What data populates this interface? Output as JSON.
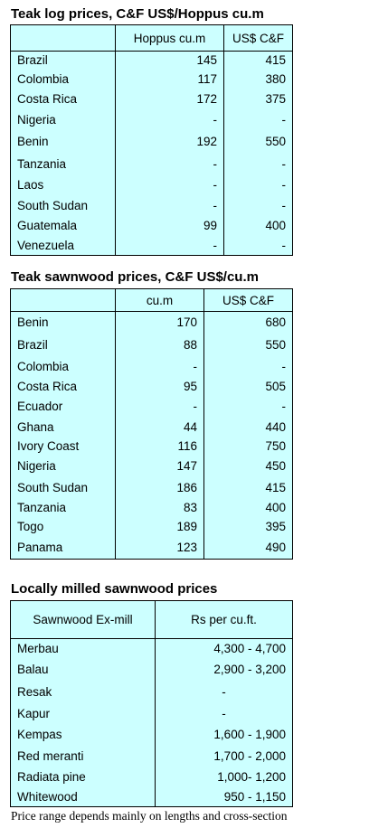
{
  "log_prices": {
    "title": "Teak log prices, C&F US$/Hoppus cu.m",
    "headers": [
      "",
      "Hoppus cu.m",
      "US$ C&F"
    ],
    "rows": [
      {
        "country": "Brazil",
        "volume": "145",
        "price": "415"
      },
      {
        "country": "Colombia",
        "volume": "117",
        "price": "380"
      },
      {
        "country": "Costa Rica",
        "volume": "172",
        "price": "375"
      },
      {
        "country": "Nigeria",
        "volume": "-",
        "price": "-"
      },
      {
        "country": "Benin",
        "volume": "192",
        "price": "550"
      },
      {
        "country": "Tanzania",
        "volume": "-",
        "price": "-"
      },
      {
        "country": "Laos",
        "volume": "-",
        "price": "-"
      },
      {
        "country": "South Sudan",
        "volume": "-",
        "price": "-"
      },
      {
        "country": "Guatemala",
        "volume": "99",
        "price": "400"
      },
      {
        "country": "Venezuela",
        "volume": "-",
        "price": "-"
      }
    ]
  },
  "sawnwood_prices": {
    "title": "Teak sawnwood prices, C&F US$/cu.m",
    "headers": [
      "",
      "cu.m",
      "US$ C&F"
    ],
    "rows": [
      {
        "country": "Benin",
        "volume": "170",
        "price": "680"
      },
      {
        "country": "Brazil",
        "volume": "88",
        "price": "550"
      },
      {
        "country": "Colombia",
        "volume": "-",
        "price": "-"
      },
      {
        "country": "Costa Rica",
        "volume": "95",
        "price": "505"
      },
      {
        "country": "Ecuador",
        "volume": "-",
        "price": "-"
      },
      {
        "country": "Ghana",
        "volume": "44",
        "price": "440"
      },
      {
        "country": "Ivory Coast",
        "volume": "116",
        "price": "750"
      },
      {
        "country": "Nigeria",
        "volume": "147",
        "price": "450"
      },
      {
        "country": "South Sudan",
        "volume": "186",
        "price": "415"
      },
      {
        "country": "Tanzania",
        "volume": "83",
        "price": "400"
      },
      {
        "country": "Togo",
        "volume": "189",
        "price": "395"
      },
      {
        "country": "Panama",
        "volume": "123",
        "price": "490"
      }
    ]
  },
  "local_prices": {
    "title": "Locally milled sawnwood prices",
    "headers": [
      "Sawnwood Ex-mill",
      "Rs per cu.ft."
    ],
    "rows": [
      {
        "species": "Merbau",
        "price": "4,300 - 4,700"
      },
      {
        "species": "Balau",
        "price": "2,900 - 3,200"
      },
      {
        "species": "Resak",
        "price": "-"
      },
      {
        "species": "Kapur",
        "price": "-"
      },
      {
        "species": "Kempas",
        "price": "1,600 - 1,900"
      },
      {
        "species": "Red meranti",
        "price": "1,700 - 2,000"
      },
      {
        "species": "Radiata pine",
        "price": "1,000- 1,200"
      },
      {
        "species": "Whitewood",
        "price": "950 - 1,150"
      }
    ],
    "note": "Price range depends mainly on lengths and cross-section"
  }
}
